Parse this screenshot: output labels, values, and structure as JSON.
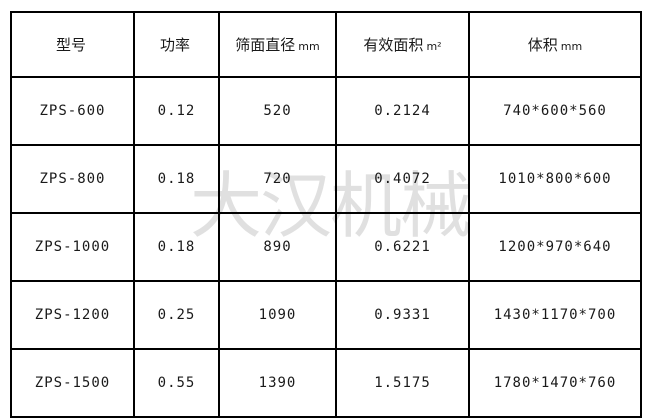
{
  "page": {
    "background_color": "#ffffff"
  },
  "colors": {
    "border": "#000000",
    "text": "#1a1a1a",
    "watermark": "#e0e0e0"
  },
  "watermark": {
    "text": "大汉机械"
  },
  "table": {
    "columns": [
      {
        "key": "model",
        "label": "型号",
        "unit": ""
      },
      {
        "key": "power",
        "label": "功率",
        "unit": ""
      },
      {
        "key": "screen-diameter",
        "label": "筛面直径",
        "unit": "mm"
      },
      {
        "key": "effective-area",
        "label": "有效面积",
        "unit": "m²"
      },
      {
        "key": "volume",
        "label": "体积",
        "unit": "mm"
      }
    ],
    "rows": [
      [
        "ZPS-600",
        "0.12",
        "520",
        "0.2124",
        "740*600*560"
      ],
      [
        "ZPS-800",
        "0.18",
        "720",
        "0.4072",
        "1010*800*600"
      ],
      [
        "ZPS-1000",
        "0.18",
        "890",
        "0.6221",
        "1200*970*640"
      ],
      [
        "ZPS-1200",
        "0.25",
        "1090",
        "0.9331",
        "1430*1170*700"
      ],
      [
        "ZPS-1500",
        "0.55",
        "1390",
        "1.5175",
        "1780*1470*760"
      ]
    ]
  }
}
